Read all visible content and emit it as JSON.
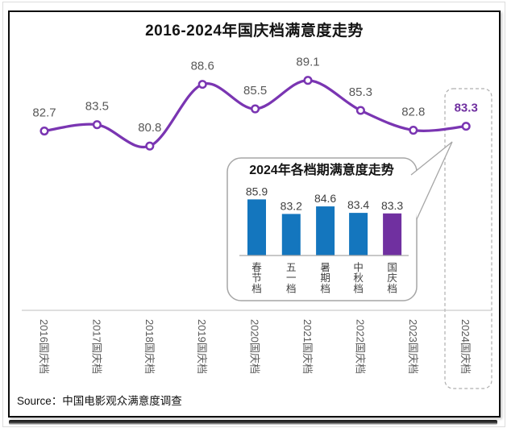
{
  "title": "2016-2024年国庆档满意度走势",
  "source": "Source：中国电影观众满意度调查",
  "colors": {
    "line_purple": "#7A35B2",
    "highlight_purple": "#7030A0",
    "bar_blue": "#1476BE",
    "label_gray": "#595959",
    "dark_label": "#404040",
    "axis_gray": "#BFBFBF",
    "bubble_border": "#A6A6A6",
    "dashed_border": "#AFAFAF"
  },
  "chart_data": [
    {
      "type": "line",
      "title": "2016-2024年国庆档满意度走势",
      "categories": [
        "2016国庆档",
        "2017国庆档",
        "2018国庆档",
        "2019国庆档",
        "2020国庆档",
        "2021国庆档",
        "2022国庆档",
        "2023国庆档",
        "2024国庆档"
      ],
      "values": [
        82.7,
        83.5,
        80.8,
        88.6,
        85.5,
        89.1,
        85.3,
        82.8,
        83.3
      ],
      "data_labels": [
        "82.7",
        "83.5",
        "80.8",
        "88.6",
        "85.5",
        "89.1",
        "85.3",
        "82.8",
        "83.3"
      ],
      "ylim": [
        79.9,
        90.6
      ],
      "grid": false,
      "legend": "none",
      "marker": "open-circle",
      "highlight": {
        "index": 8,
        "label": "83.3",
        "style": "dashed-rounded-box"
      }
    },
    {
      "type": "bar",
      "title": "2024年各档期满意度走势",
      "categories": [
        "春节档",
        "五一档",
        "暑期档",
        "中秋档",
        "国庆档"
      ],
      "values": [
        85.9,
        83.2,
        84.6,
        83.4,
        83.3
      ],
      "data_labels": [
        "85.9",
        "83.2",
        "84.6",
        "83.4",
        "83.3"
      ],
      "ylim": [
        75.5,
        87
      ],
      "grid": false,
      "legend": "none",
      "container": "callout-bubble",
      "highlight": {
        "index": 4,
        "note": "purple bar for 国庆档"
      }
    }
  ]
}
